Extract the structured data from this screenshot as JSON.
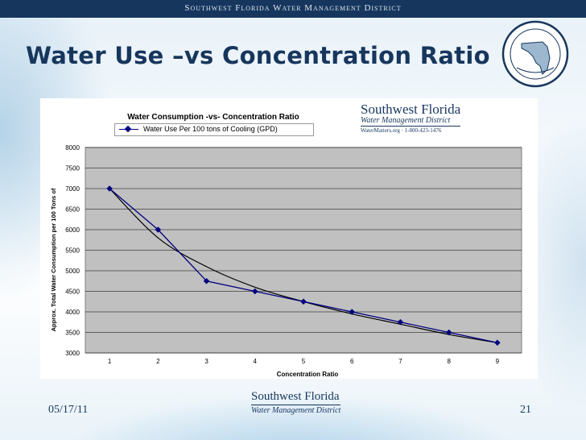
{
  "header": {
    "organization": "Southwest Florida Water Management District"
  },
  "slide": {
    "title": "Water Use –vs Concentration Ratio",
    "date": "05/17/11",
    "page_number": "21"
  },
  "logo_top": {
    "line1": "Southwest Florida",
    "line2": "Water Management District",
    "line3": "WaterMatters.org · 1-800-423-1476"
  },
  "logo_bottom": {
    "line1": "Southwest Florida",
    "line2": "Water Management District"
  },
  "colors": {
    "series": "#00007f",
    "plot_bg": "#c0c0c0",
    "header_bar": "#17365d",
    "title_text": "#17365d"
  },
  "chart_data": {
    "type": "line",
    "title": "Water Consumption -vs- Concentration Ratio",
    "xlabel": "Concentration Ratio",
    "ylabel": "Approx. Total Water Consumption per 100 Tons of",
    "x": [
      1,
      2,
      3,
      4,
      5,
      6,
      7,
      8,
      9
    ],
    "series": [
      {
        "name": "Water Use Per 100 tons of Cooling (GPD)",
        "values": [
          7000,
          6000,
          4750,
          4500,
          4250,
          4000,
          3750,
          3500,
          3250
        ]
      }
    ],
    "trendline": {
      "type": "smooth fit",
      "values": [
        7000,
        5800,
        5100,
        4600,
        4250,
        3950,
        3700,
        3450,
        3250
      ]
    },
    "ylim": [
      3000,
      8000
    ],
    "yticks": [
      3000,
      3500,
      4000,
      4500,
      5000,
      5500,
      6000,
      6500,
      7000,
      7500,
      8000
    ],
    "xticks": [
      1,
      2,
      3,
      4,
      5,
      6,
      7,
      8,
      9
    ],
    "grid": true,
    "legend": "top"
  }
}
